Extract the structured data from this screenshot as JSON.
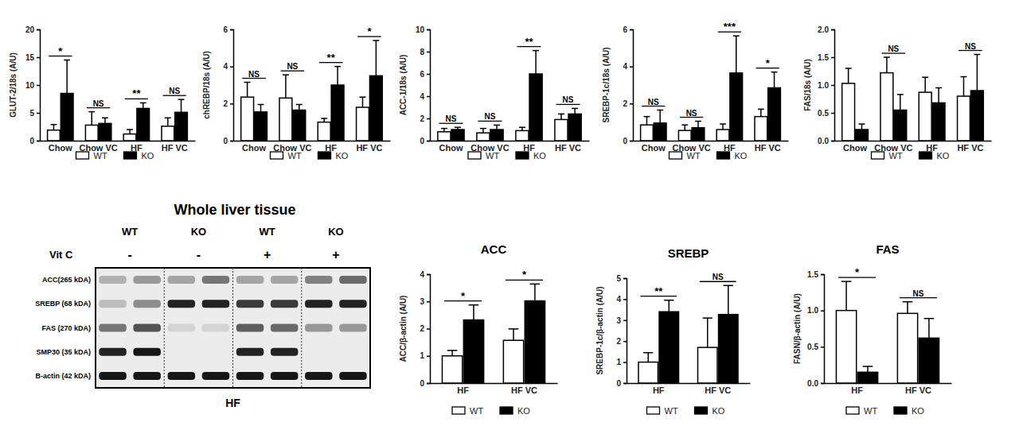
{
  "chart_data": [
    {
      "type": "bar",
      "y_label": "GLUT-2/18s (A/U)",
      "categories": [
        "Chow",
        "Chow VC",
        "HF",
        "HF VC"
      ],
      "series": [
        {
          "name": "WT",
          "color": "#ffffff",
          "values": [
            1.9,
            2.8,
            1.2,
            2.6
          ],
          "errors": [
            1.0,
            2.4,
            0.8,
            1.5
          ]
        },
        {
          "name": "KO",
          "color": "#000000",
          "values": [
            8.5,
            3.1,
            5.8,
            5.1
          ],
          "errors": [
            6.0,
            1.0,
            1.0,
            2.3
          ]
        }
      ],
      "annotations": [
        "*",
        "NS",
        "**",
        "NS"
      ],
      "ylim": [
        0,
        20
      ],
      "yticks": [
        0,
        5,
        10,
        15,
        20
      ],
      "legend": "bottom"
    },
    {
      "type": "bar",
      "y_label": "chREBP/18s (A/U)",
      "categories": [
        "Chow",
        "Chow VC",
        "HF",
        "HF VC"
      ],
      "series": [
        {
          "name": "WT",
          "color": "#ffffff",
          "values": [
            2.35,
            2.3,
            1.0,
            1.8
          ],
          "errors": [
            0.8,
            1.25,
            0.2,
            0.55
          ]
        },
        {
          "name": "KO",
          "color": "#000000",
          "values": [
            1.55,
            1.65,
            3.0,
            3.5
          ],
          "errors": [
            0.4,
            0.3,
            1.0,
            1.9
          ]
        }
      ],
      "annotations": [
        "NS",
        "NS",
        "**",
        "*"
      ],
      "ylim": [
        0,
        6
      ],
      "yticks": [
        0,
        2,
        4,
        6
      ],
      "legend": "bottom"
    },
    {
      "type": "bar",
      "y_label": "ACC-1/18s (A/U)",
      "categories": [
        "Chow",
        "Chow VC",
        "HF",
        "HF VC"
      ],
      "series": [
        {
          "name": "WT",
          "color": "#ffffff",
          "values": [
            0.8,
            0.7,
            0.9,
            1.9
          ],
          "errors": [
            0.3,
            0.4,
            0.3,
            0.5
          ]
        },
        {
          "name": "KO",
          "color": "#000000",
          "values": [
            1.0,
            1.0,
            6.0,
            2.4
          ],
          "errors": [
            0.2,
            0.4,
            2.1,
            0.5
          ]
        }
      ],
      "annotations": [
        "NS",
        "NS",
        "**",
        "NS"
      ],
      "ylim": [
        0,
        10
      ],
      "yticks": [
        0,
        2,
        4,
        6,
        8,
        10
      ],
      "legend": "bottom"
    },
    {
      "type": "bar",
      "y_label": "SREBP-1c/18s (A/U)",
      "categories": [
        "Chow",
        "Chow VC",
        "HF",
        "HF VC"
      ],
      "series": [
        {
          "name": "WT",
          "color": "#ffffff",
          "values": [
            0.85,
            0.55,
            0.6,
            1.3
          ],
          "errors": [
            0.45,
            0.3,
            0.3,
            0.4
          ]
        },
        {
          "name": "KO",
          "color": "#000000",
          "values": [
            0.95,
            0.7,
            3.65,
            2.85
          ],
          "errors": [
            0.7,
            0.35,
            2.0,
            0.85
          ]
        }
      ],
      "annotations": [
        "NS",
        "NS",
        "***",
        "*"
      ],
      "ylim": [
        0,
        6
      ],
      "yticks": [
        0,
        2,
        4,
        6
      ],
      "legend": "bottom"
    },
    {
      "type": "bar",
      "y_label": "FAS/18s (A/U)",
      "categories": [
        "Chow",
        "Chow VC",
        "HF",
        "HF VC"
      ],
      "series": [
        {
          "name": "WT",
          "color": "#ffffff",
          "values": [
            1.03,
            1.22,
            0.87,
            0.8
          ],
          "errors": [
            0.27,
            0.28,
            0.27,
            0.35
          ]
        },
        {
          "name": "KO",
          "color": "#000000",
          "values": [
            0.2,
            0.55,
            0.68,
            0.9
          ],
          "errors": [
            0.1,
            0.28,
            0.27,
            0.65
          ]
        }
      ],
      "annotations": [
        null,
        "NS",
        null,
        "NS"
      ],
      "ylim": [
        0,
        2
      ],
      "yticks": [
        {
          "value": 0,
          "label": "0.0"
        },
        {
          "value": 0.5,
          "label": "0.5"
        },
        {
          "value": 1,
          "label": "1.0"
        },
        {
          "value": 1.5,
          "label": "1.5"
        },
        {
          "value": 2,
          "label": "2.0"
        }
      ],
      "legend": "bottom"
    },
    {
      "type": "bar",
      "title": "ACC",
      "y_label": "ACC/β-actin (A/U)",
      "categories": [
        "HF",
        "HF VC"
      ],
      "series": [
        {
          "name": "WT",
          "color": "#ffffff",
          "values": [
            1.0,
            1.57
          ],
          "errors": [
            0.2,
            0.42
          ]
        },
        {
          "name": "KO",
          "color": "#000000",
          "values": [
            2.32,
            3.02
          ],
          "errors": [
            0.55,
            0.62
          ]
        }
      ],
      "annotations": [
        "*",
        "*"
      ],
      "ylim": [
        0,
        4
      ],
      "yticks": [
        0,
        1,
        2,
        3,
        4
      ],
      "legend": "bottom"
    },
    {
      "type": "bar",
      "title": "SREBP",
      "y_label": "SREBP-1c/β-actin (A/U)",
      "categories": [
        "HF",
        "HF VC"
      ],
      "series": [
        {
          "name": "WT",
          "color": "#ffffff",
          "values": [
            1.0,
            1.7
          ],
          "errors": [
            0.45,
            1.4
          ]
        },
        {
          "name": "KO",
          "color": "#000000",
          "values": [
            3.4,
            3.27
          ],
          "errors": [
            0.55,
            1.38
          ]
        }
      ],
      "annotations": [
        "**",
        "NS"
      ],
      "ylim": [
        0,
        5
      ],
      "yticks": [
        0,
        1,
        2,
        3,
        4,
        5
      ],
      "legend": "bottom"
    },
    {
      "type": "bar",
      "title": "FAS",
      "y_label": "FASN/β-actin (A/U)",
      "categories": [
        "HF",
        "HF VC"
      ],
      "series": [
        {
          "name": "WT",
          "color": "#ffffff",
          "values": [
            1.0,
            0.96
          ],
          "errors": [
            0.4,
            0.16
          ]
        },
        {
          "name": "KO",
          "color": "#000000",
          "values": [
            0.15,
            0.62
          ],
          "errors": [
            0.08,
            0.27
          ]
        }
      ],
      "annotations": [
        "*",
        "NS"
      ],
      "ylim": [
        0,
        1.5
      ],
      "yticks": [
        {
          "value": 0,
          "label": "0.0"
        },
        {
          "value": 0.5,
          "label": "0.5"
        },
        {
          "value": 1,
          "label": "1.0"
        },
        {
          "value": 1.5,
          "label": "1.5"
        }
      ],
      "legend": "bottom"
    }
  ],
  "blot": {
    "title": "Whole liver tissue",
    "columns": [
      "WT",
      "KO",
      "WT",
      "KO"
    ],
    "vitc_label": "Vit C",
    "vitc": [
      "-",
      "-",
      "+",
      "+"
    ],
    "rows": [
      {
        "label": "ACC(265 kDA)",
        "bands": [
          0.25,
          0.35,
          0.3,
          0.5,
          0.3,
          0.3,
          0.45,
          0.55
        ]
      },
      {
        "label": "SREBP (68 kDA)",
        "bands": [
          0.2,
          0.4,
          0.85,
          0.85,
          0.75,
          0.75,
          0.85,
          0.85
        ]
      },
      {
        "label": "FAS (270 kDA)",
        "bands": [
          0.5,
          0.65,
          0.1,
          0.1,
          0.6,
          0.55,
          0.35,
          0.35
        ]
      },
      {
        "label": "SMP30 (35 kDA)",
        "bands": [
          0.85,
          0.9,
          0,
          0,
          0.85,
          0.85,
          0,
          0
        ]
      },
      {
        "label": "B-actin (42 kDA)",
        "bands": [
          0.9,
          0.9,
          0.9,
          0.9,
          0.9,
          0.9,
          0.9,
          0.9
        ]
      }
    ],
    "footer": "HF"
  }
}
